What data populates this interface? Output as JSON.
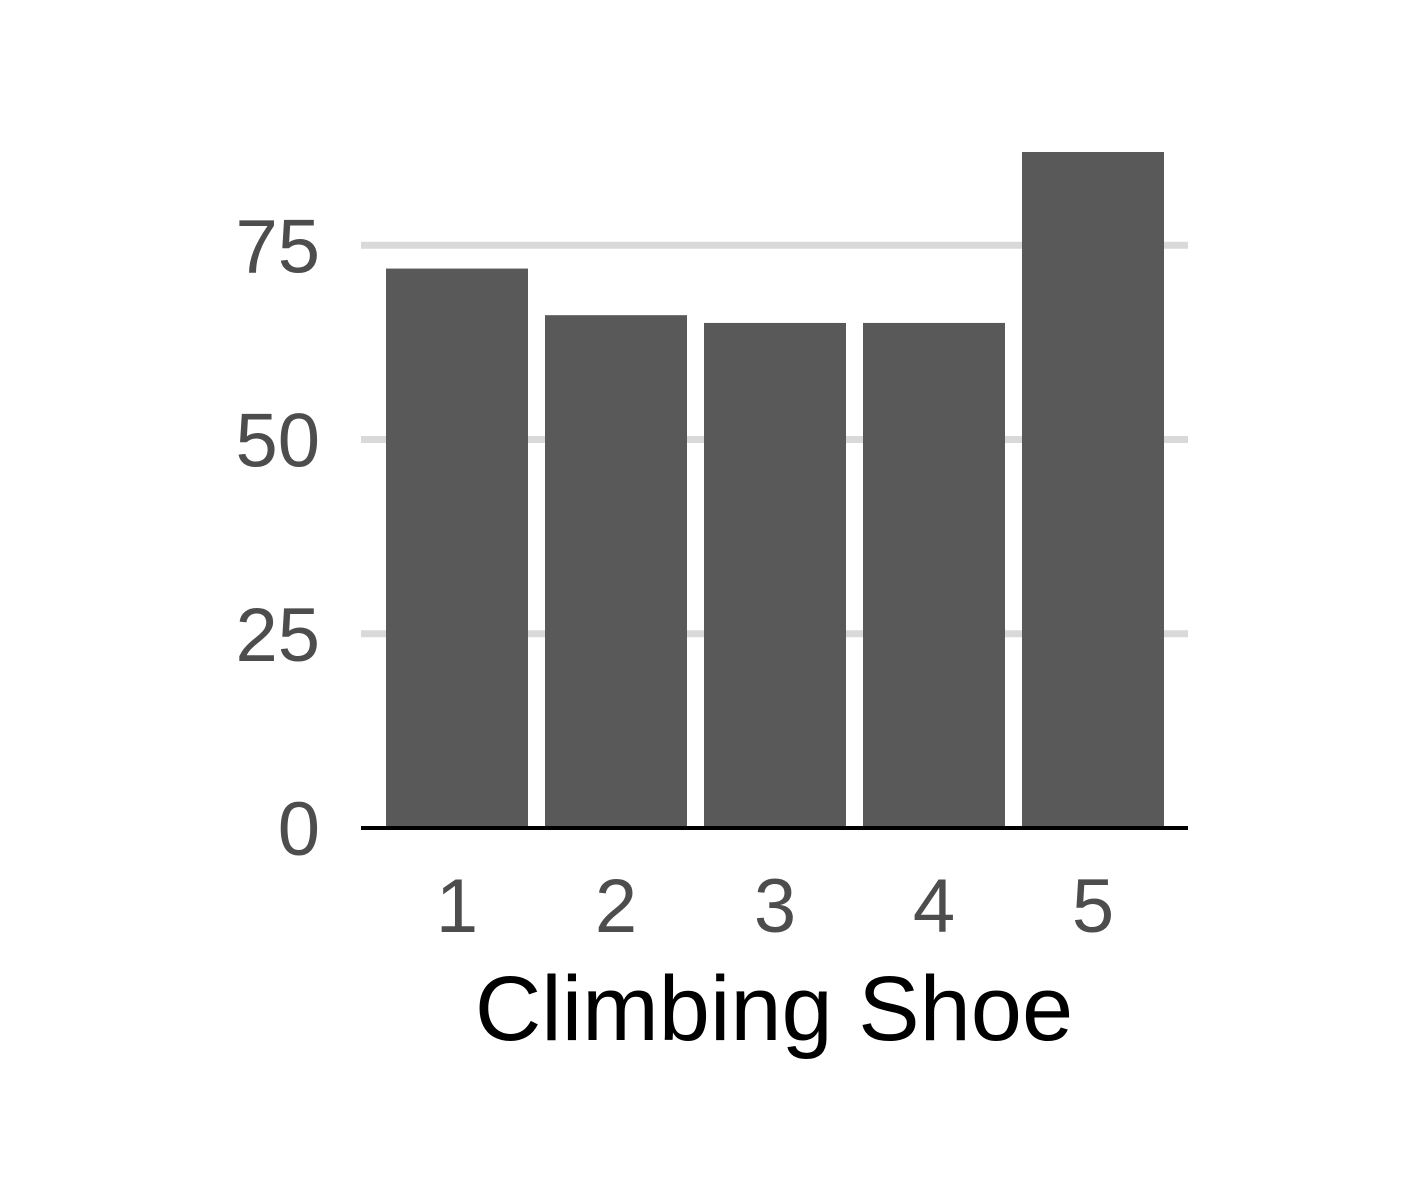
{
  "chart_data": {
    "type": "bar",
    "categories": [
      "1",
      "2",
      "3",
      "4",
      "5"
    ],
    "values": [
      72,
      66,
      65,
      65,
      87
    ],
    "title": "",
    "xlabel": "Climbing Shoe",
    "ylabel": "",
    "ylim": [
      0,
      90
    ],
    "yticks": [
      0,
      25,
      50,
      75
    ],
    "ytick_labels": [
      "0",
      "25",
      "50",
      "75"
    ],
    "grid": "horizontal major lines",
    "legend": "none"
  },
  "colors": {
    "bar": "#595959",
    "grid": "#d9d9d9",
    "baseline": "#000000",
    "tick_text": "#4d4d4d",
    "title_text": "#000000",
    "background": "#ffffff"
  }
}
